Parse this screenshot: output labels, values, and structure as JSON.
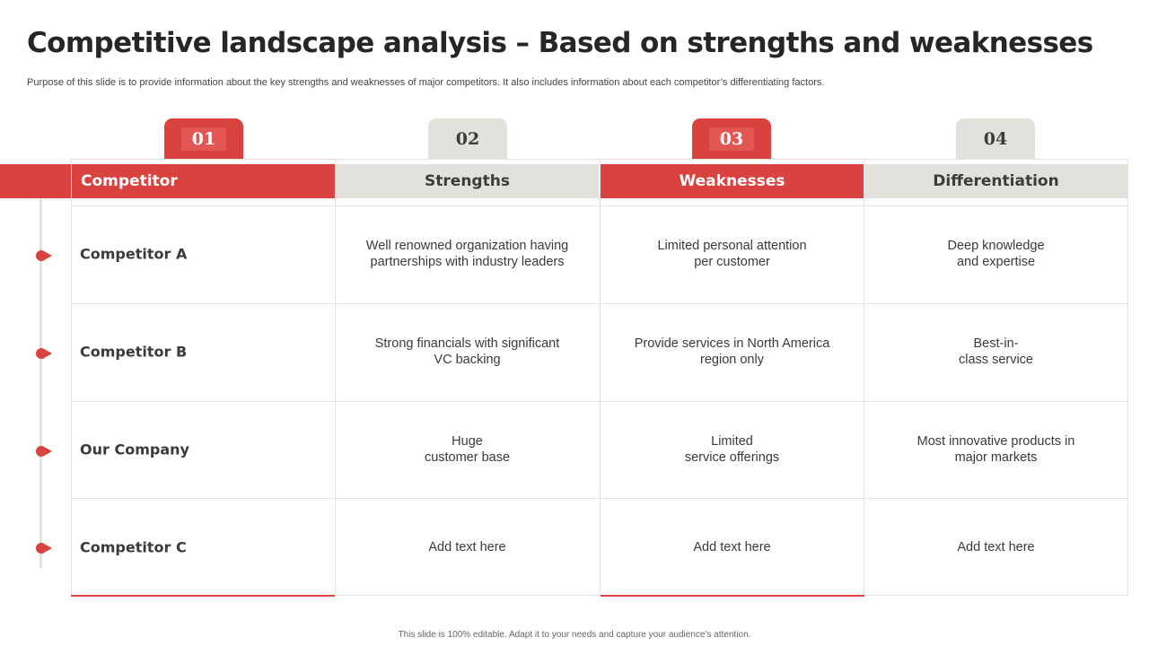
{
  "title": "Competitive landscape analysis – Based on strengths and weaknesses",
  "subtitle": "Purpose of this slide is to provide information about the key strengths and weaknesses of major competitors. It also includes information about each competitor’s differentiating factors.",
  "tabs": [
    "01",
    "02",
    "03",
    "04"
  ],
  "headers": [
    "Competitor",
    "Strengths",
    "Weaknesses",
    "Differentiation"
  ],
  "rows": [
    {
      "name": "Competitor A",
      "strengths": "Well renowned organization having\npartnerships with industry leaders",
      "weaknesses": "Limited personal attention\nper customer",
      "differentiation": "Deep knowledge\nand expertise"
    },
    {
      "name": "Competitor B",
      "strengths": "Strong financials with significant\nVC backing",
      "weaknesses": "Provide services in North America\nregion only",
      "differentiation": "Best-in-\nclass service"
    },
    {
      "name": "Our Company",
      "strengths": "Huge\ncustomer base",
      "weaknesses": "Limited\nservice offerings",
      "differentiation": "Most innovative products in\nmajor markets"
    },
    {
      "name": "Competitor C",
      "strengths": "Add text here",
      "weaknesses": "Add text here",
      "differentiation": "Add text here"
    }
  ],
  "footer": "This slide is 100% editable. Adapt it to your needs and capture your audience’s attention.",
  "colors": {
    "accent": "#d9433f",
    "neutral": "#e2e1dc"
  }
}
